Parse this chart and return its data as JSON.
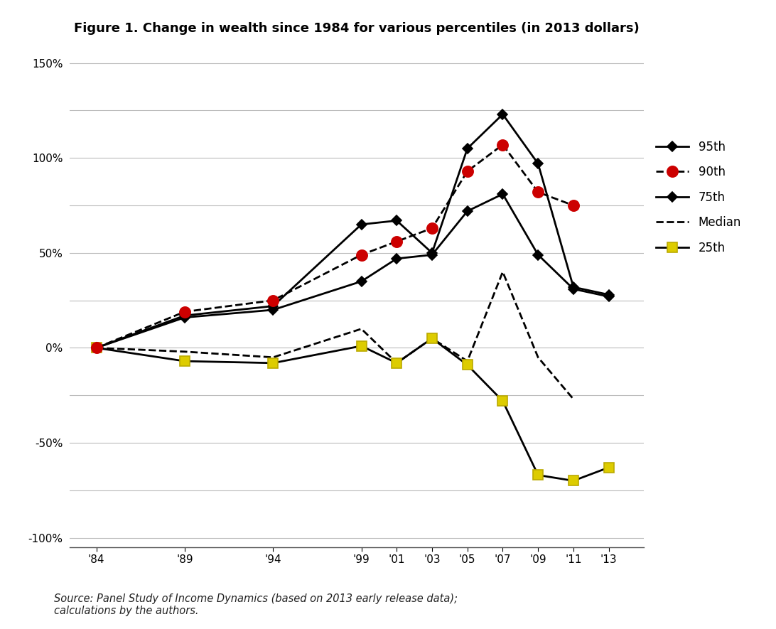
{
  "title": "Figure 1. Change in wealth since 1984 for various percentiles (in 2013 dollars)",
  "source_text": "Source: Panel Study of Income Dynamics (based on 2013 early release data);\ncalculations by the authors.",
  "x_labels": [
    "'84",
    "'89",
    "'94",
    "'99",
    "'01",
    "'03",
    "'05",
    "'07",
    "'09",
    "'11",
    "'13"
  ],
  "x_values": [
    1984,
    1989,
    1994,
    1999,
    2001,
    2003,
    2005,
    2007,
    2009,
    2011,
    2013
  ],
  "series": [
    {
      "name": "95th",
      "values": [
        0,
        0.17,
        0.22,
        0.65,
        0.67,
        0.5,
        1.05,
        1.23,
        0.97,
        0.32,
        0.28
      ],
      "color": "#000000",
      "linestyle": "-",
      "linewidth": 2.0,
      "marker": "D",
      "markersize": 7,
      "markerfacecolor": "#000000",
      "markeredgecolor": "#000000",
      "label": "95th",
      "zorder": 5,
      "has_null": false
    },
    {
      "name": "90th",
      "values": [
        0,
        0.19,
        0.25,
        0.49,
        0.56,
        0.63,
        0.93,
        1.07,
        0.82,
        0.75,
        null
      ],
      "color": "#000000",
      "linestyle": "--",
      "linewidth": 2.0,
      "marker": "o",
      "markersize": 11,
      "markerfacecolor": "#cc0000",
      "markeredgecolor": "#cc0000",
      "label": "90th",
      "zorder": 6,
      "has_null": true
    },
    {
      "name": "75th",
      "values": [
        0,
        0.16,
        0.2,
        0.35,
        0.47,
        0.49,
        0.72,
        0.81,
        0.49,
        0.31,
        0.27
      ],
      "color": "#000000",
      "linestyle": "-",
      "linewidth": 2.0,
      "marker": "D",
      "markersize": 7,
      "markerfacecolor": "#000000",
      "markeredgecolor": "#000000",
      "label": "75th",
      "zorder": 4,
      "has_null": false
    },
    {
      "name": "Median",
      "values": [
        0,
        -0.02,
        -0.05,
        0.1,
        -0.08,
        0.05,
        -0.07,
        0.4,
        -0.05,
        -0.27,
        null
      ],
      "color": "#000000",
      "linestyle": "--",
      "linewidth": 2.0,
      "marker": null,
      "markersize": 0,
      "markerfacecolor": null,
      "markeredgecolor": null,
      "label": "Median",
      "zorder": 3,
      "has_null": true
    },
    {
      "name": "25th",
      "values": [
        0,
        -0.07,
        -0.08,
        0.01,
        -0.08,
        0.05,
        -0.09,
        -0.28,
        -0.67,
        -0.7,
        -0.63
      ],
      "color": "#000000",
      "linestyle": "-",
      "linewidth": 2.0,
      "marker": "s",
      "markersize": 10,
      "markerfacecolor": "#ddcc00",
      "markeredgecolor": "#bbaa00",
      "label": "25th",
      "zorder": 4,
      "has_null": false
    }
  ],
  "ylim": [
    -1.05,
    1.6
  ],
  "yticks": [
    -1.0,
    -0.75,
    -0.5,
    -0.25,
    0.0,
    0.25,
    0.5,
    0.75,
    1.0,
    1.25,
    1.5
  ],
  "ytick_labels": [
    "-100%",
    "",
    "-50%",
    "",
    "0%",
    "",
    "50%",
    "",
    "100%",
    "",
    "150%"
  ],
  "background_color": "#ffffff",
  "grid_color": "#bbbbbb",
  "title_fontsize": 13,
  "axis_fontsize": 11,
  "legend_fontsize": 12
}
